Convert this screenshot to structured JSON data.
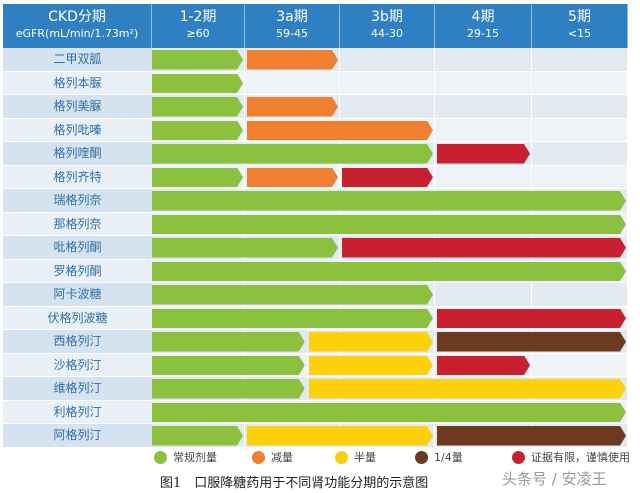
{
  "header": {
    "label_title": "CKD分期",
    "label_sub": "eGFR(mL/min/1.73m²)",
    "stages": [
      {
        "name": "1-2期",
        "range": "≥60"
      },
      {
        "name": "3a期",
        "range": "59-45"
      },
      {
        "name": "3b期",
        "range": "44-30"
      },
      {
        "name": "4期",
        "range": "29-15"
      },
      {
        "name": "5期",
        "range": "<15"
      }
    ]
  },
  "colors": {
    "green": "#8cc03f",
    "orange": "#f07f2f",
    "yellow": "#fdd00c",
    "brown": "#6b3a1f",
    "red": "#c8202f",
    "header": "#2f80c3"
  },
  "rows": [
    {
      "drug": "二甲双胍",
      "segments": [
        [
          "green",
          0,
          1
        ],
        [
          "orange",
          1,
          2
        ]
      ]
    },
    {
      "drug": "格列本脲",
      "segments": [
        [
          "green",
          0,
          1
        ]
      ]
    },
    {
      "drug": "格列美脲",
      "segments": [
        [
          "green",
          0,
          1
        ],
        [
          "orange",
          1,
          2
        ]
      ]
    },
    {
      "drug": "格列吡嗪",
      "segments": [
        [
          "green",
          0,
          1
        ],
        [
          "orange",
          1,
          3
        ]
      ]
    },
    {
      "drug": "格列喹酮",
      "segments": [
        [
          "green",
          0,
          3
        ],
        [
          "red",
          3,
          4
        ]
      ]
    },
    {
      "drug": "格列齐特",
      "segments": [
        [
          "green",
          0,
          1
        ],
        [
          "orange",
          1,
          2
        ],
        [
          "red",
          2,
          3
        ]
      ]
    },
    {
      "drug": "瑞格列奈",
      "segments": [
        [
          "green",
          0,
          5
        ]
      ]
    },
    {
      "drug": "那格列奈",
      "segments": [
        [
          "green",
          0,
          5
        ]
      ]
    },
    {
      "drug": "吡格列酮",
      "segments": [
        [
          "green",
          0,
          2
        ],
        [
          "red",
          2,
          5
        ]
      ]
    },
    {
      "drug": "罗格列酮",
      "segments": [
        [
          "green",
          0,
          5
        ]
      ]
    },
    {
      "drug": "阿卡波糖",
      "segments": [
        [
          "green",
          0,
          3
        ]
      ]
    },
    {
      "drug": "伏格列波糖",
      "segments": [
        [
          "green",
          0,
          3
        ],
        [
          "red",
          3,
          5
        ]
      ]
    },
    {
      "drug": "西格列汀",
      "segments": [
        [
          "green",
          0,
          1.65
        ],
        [
          "yellow",
          1.65,
          3
        ],
        [
          "brown",
          3,
          5
        ]
      ]
    },
    {
      "drug": "沙格列汀",
      "segments": [
        [
          "green",
          0,
          1.65
        ],
        [
          "yellow",
          1.65,
          3
        ],
        [
          "red",
          3,
          4
        ]
      ]
    },
    {
      "drug": "维格列汀",
      "segments": [
        [
          "green",
          0,
          1.65
        ],
        [
          "yellow",
          1.65,
          5
        ]
      ]
    },
    {
      "drug": "利格列汀",
      "segments": [
        [
          "green",
          0,
          5
        ]
      ]
    },
    {
      "drug": "阿格列汀",
      "segments": [
        [
          "green",
          0,
          1
        ],
        [
          "yellow",
          1,
          3
        ],
        [
          "brown",
          3,
          5
        ]
      ]
    }
  ],
  "legend": [
    {
      "color": "green",
      "label": "常规剂量"
    },
    {
      "color": "orange",
      "label": "减量"
    },
    {
      "color": "yellow",
      "label": "半量"
    },
    {
      "color": "brown",
      "label": "1/4量"
    },
    {
      "color": "red",
      "label": "证据有限，谨慎使用"
    }
  ],
  "caption": "图1　口服降糖药用于不同肾功能分期的示意图",
  "watermark": "头条号 / 安凌王"
}
